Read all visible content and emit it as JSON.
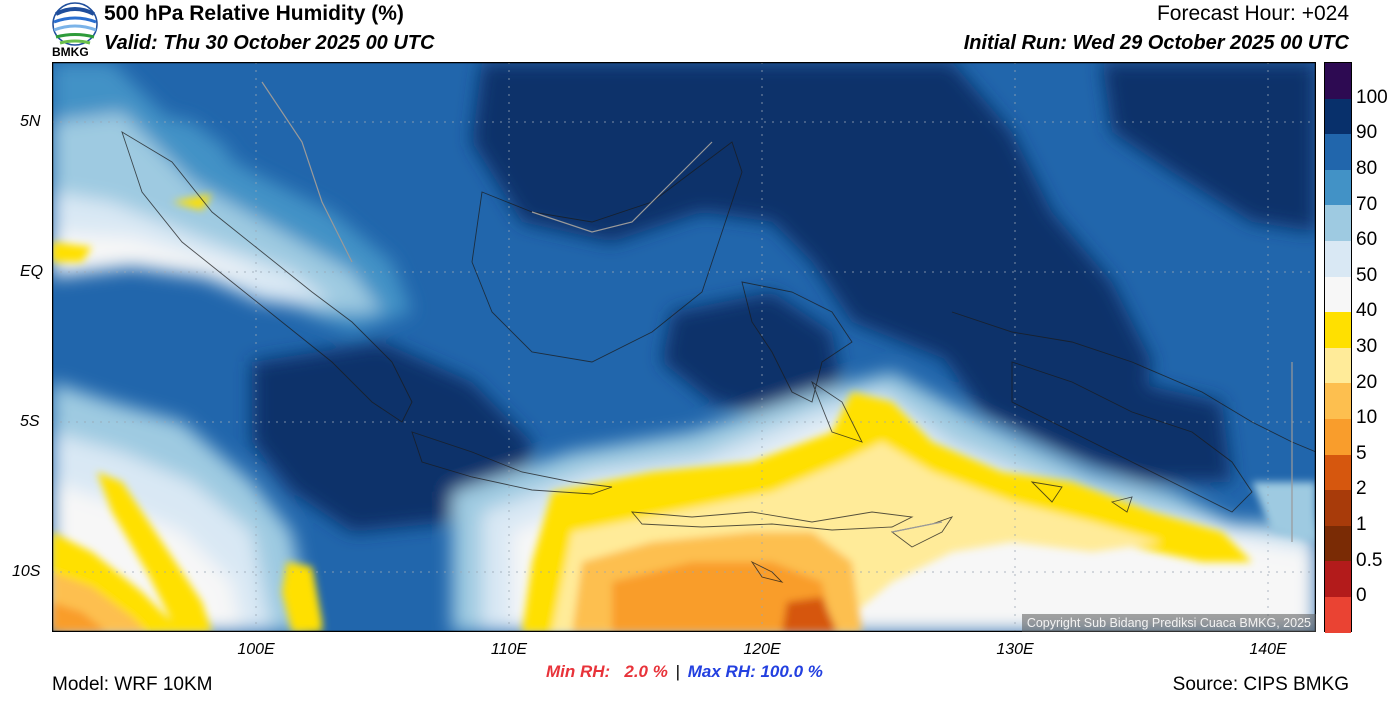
{
  "header": {
    "title": "500 hPa Relative Humidity (%)",
    "valid": "Valid: Thu 30 October 2025 00 UTC",
    "forecast_hour": "Forecast Hour: +024",
    "initial_run": "Initial Run: Wed 29 October 2025 00 UTC",
    "logo_text": "BMKG"
  },
  "map": {
    "lat_labels": [
      "5N",
      "EQ",
      "5S",
      "10S"
    ],
    "lon_labels": [
      "100E",
      "110E",
      "120E",
      "130E",
      "140E"
    ],
    "copyright": "Copyright Sub Bidang Prediksi Cuaca BMKG, 2025"
  },
  "colorbar": {
    "labels": [
      "100",
      "90",
      "80",
      "70",
      "60",
      "50",
      "40",
      "30",
      "20",
      "10",
      "5",
      "2",
      "1",
      "0.5",
      "0"
    ],
    "colors": [
      "#2d0a52",
      "#08306b",
      "#2166ac",
      "#4292c6",
      "#9ecae1",
      "#d9e8f4",
      "#f7f7f7",
      "#ffe000",
      "#ffeb99",
      "#fdbf4f",
      "#f99d2c",
      "#d6570e",
      "#a83b0a",
      "#7a2b05",
      "#b31b1b",
      "#ea4333"
    ]
  },
  "stats": {
    "min_rh": "Min RH:   2.0 %",
    "separator": "|",
    "max_rh": "Max RH: 100.0 %"
  },
  "footer": {
    "model": "Model: WRF 10KM",
    "source": "Source: CIPS BMKG"
  }
}
